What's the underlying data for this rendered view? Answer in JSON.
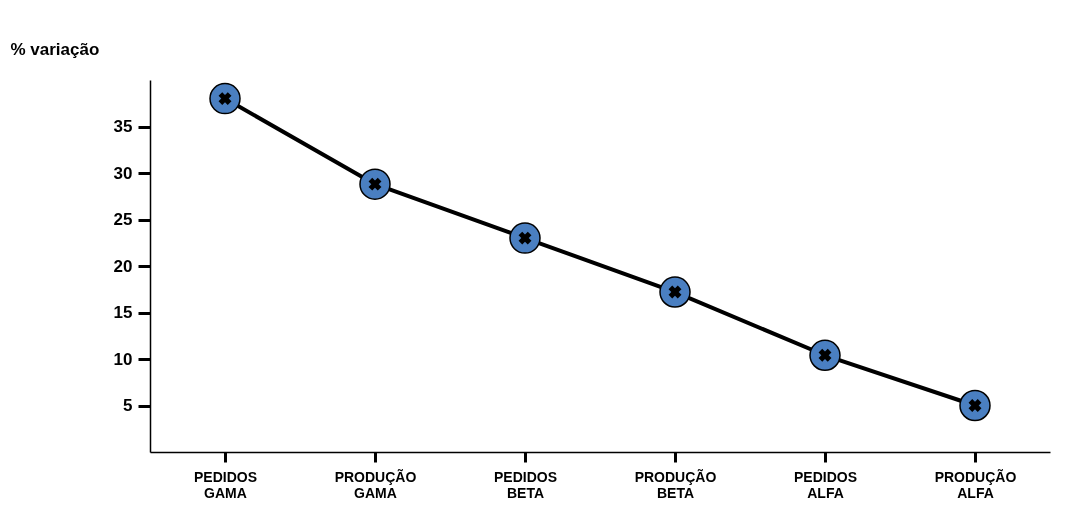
{
  "chart_data": {
    "type": "line",
    "ylabel": "% variação",
    "categories": [
      "PEDIDOS GAMA",
      "PRODUÇÃO GAMA",
      "PEDIDOS BETA",
      "PRODUÇÃO BETA",
      "PEDIDOS ALFA",
      "PRODUÇÃO ALFA"
    ],
    "series": [
      {
        "color": "#4a7fc1",
        "values": [
          38,
          28.8,
          23,
          17.2,
          10.4,
          5
        ]
      }
    ],
    "ylim": [
      0,
      40
    ],
    "yticks": [
      5,
      10,
      15,
      20,
      25,
      30,
      35
    ],
    "grid": false,
    "marker": "circle",
    "line_style": "solid"
  }
}
